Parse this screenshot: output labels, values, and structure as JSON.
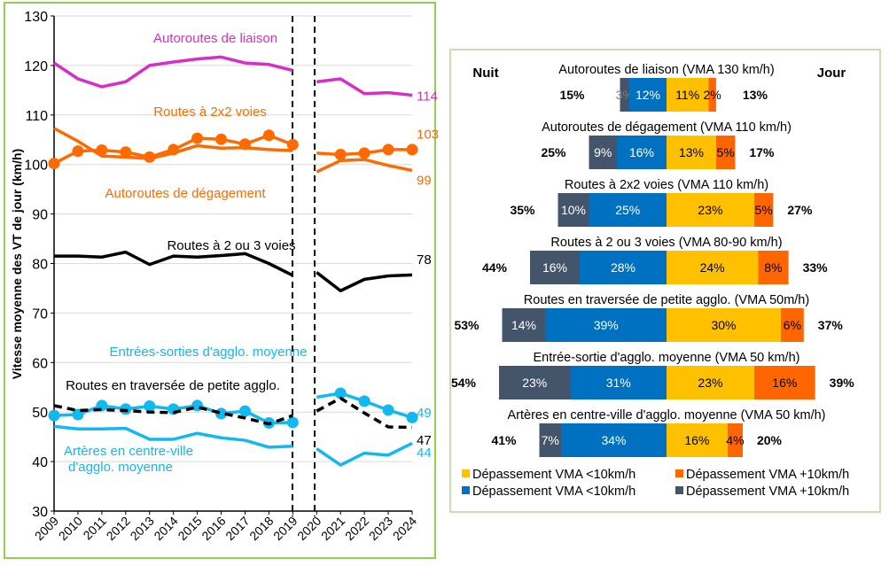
{
  "chart_data": [
    {
      "type": "line",
      "ylabel": "Vitesse moyenne des VT de jour (km/h)",
      "ylim": [
        30,
        130
      ],
      "yticks": [
        30,
        40,
        50,
        60,
        70,
        80,
        90,
        100,
        110,
        120,
        130
      ],
      "x": [
        2009,
        2010,
        2011,
        2012,
        2013,
        2014,
        2015,
        2016,
        2017,
        2018,
        2019,
        2020,
        2021,
        2022,
        2023,
        2024
      ],
      "grid": true,
      "series": [
        {
          "name": "Autoroutes de liaison",
          "color": "#d62fc8",
          "markers": false,
          "dashed": false,
          "end_label": "114",
          "values": [
            120.5,
            117.3,
            115.7,
            116.7,
            120,
            120.7,
            121.3,
            121.7,
            120.5,
            120.2,
            119,
            116.7,
            117.3,
            114.3,
            114.5,
            114
          ]
        },
        {
          "name": "Routes à 2x2 voies",
          "color": "#ff6a00",
          "markers": true,
          "dashed": false,
          "end_label": "103",
          "values": [
            100.2,
            102.7,
            102.9,
            102.5,
            101.5,
            103,
            105.3,
            105.1,
            104.1,
            105.9,
            104,
            102.3,
            102,
            102.3,
            103,
            103
          ]
        },
        {
          "name": "Autoroutes de dégagement",
          "color": "#ff6a00",
          "markers": false,
          "dashed": false,
          "end_label": "99",
          "values": [
            107.3,
            104.7,
            101.7,
            101.5,
            101.2,
            102.3,
            103.8,
            103.3,
            103.4,
            103,
            102.8,
            98.5,
            100.8,
            101,
            99.8,
            98.8
          ]
        },
        {
          "name": "Routes à 2 ou 3 voies",
          "color": "#000000",
          "markers": false,
          "dashed": false,
          "end_label": "78",
          "values": [
            81.5,
            81.5,
            81.3,
            82.3,
            79.8,
            81.5,
            81.3,
            81.6,
            82,
            80,
            77.6,
            78.2,
            74.5,
            76.8,
            77.5,
            77.7
          ]
        },
        {
          "name": "Entrées-sorties d'agglo. moyenne",
          "color": "#12b8f0",
          "markers": true,
          "dashed": false,
          "end_label": "49",
          "values": [
            49.3,
            49.5,
            51.3,
            50.6,
            51.2,
            50.6,
            51.3,
            49.7,
            50.2,
            47.8,
            47.9,
            53,
            53.8,
            52.2,
            50.4,
            48.9
          ]
        },
        {
          "name": "Routes en traversée de petite agglo.",
          "color": "#000000",
          "markers": false,
          "dashed": true,
          "end_label": "47",
          "values": [
            51.3,
            50.3,
            50.5,
            50.3,
            50,
            49.9,
            51,
            49.8,
            48.8,
            47.6,
            49.3,
            50.2,
            52.8,
            49.8,
            47,
            46.9
          ]
        },
        {
          "name": "Artères en centre-ville d'agglo. moyenne",
          "color": "#12b8f0",
          "markers": false,
          "dashed": false,
          "end_label": "44",
          "values": [
            47.1,
            46.6,
            46.6,
            46.7,
            44.5,
            44.5,
            45.7,
            44.8,
            44.3,
            42.9,
            43.1,
            42.6,
            39.3,
            41.7,
            41.3,
            43.7
          ]
        }
      ],
      "series_labels": {
        "liaison": "Autoroutes de liaison",
        "deux_deux": "Routes à 2x2 voies",
        "degagement": "Autoroutes de dégagement",
        "deux_trois": "Routes à 2 ou 3 voies",
        "entrees": "Entrées-sorties d'agglo. moyenne",
        "traversee": "Routes en traversée de petite agglo.",
        "arteres_1": "Artères en centre-ville",
        "arteres_2": "d'agglo. moyenne"
      }
    },
    {
      "type": "bar",
      "orientation": "horizontal-diverging",
      "left_header": "Nuit",
      "right_header": "Jour",
      "categories": [
        "Autoroutes de liaison (VMA 130 km/h)",
        "Autoroutes de dégagement (VMA 110 km/h)",
        "Routes à 2x2 voies (VMA 110 km/h)",
        "Routes à 2 ou 3 voies (VMA 80-90 km/h)",
        "Routes en traversée de petite agglo. (VMA 50m/h)",
        "Entrée-sortie d'agglo. moyenne (VMA 50 km/h)",
        "Artères en centre-ville d'agglo. moyenne (VMA 50 km/h)"
      ],
      "night_plus10": [
        3,
        9,
        10,
        16,
        14,
        23,
        7
      ],
      "night_under10": [
        12,
        16,
        25,
        28,
        39,
        31,
        34
      ],
      "day_under10": [
        11,
        13,
        23,
        24,
        30,
        23,
        16
      ],
      "day_plus10": [
        2,
        5,
        5,
        8,
        6,
        16,
        4
      ],
      "night_total": [
        "15%",
        "25%",
        "35%",
        "44%",
        "53%",
        "54%",
        "41%"
      ],
      "day_total": [
        "13%",
        "17%",
        "27%",
        "33%",
        "37%",
        "39%",
        "20%"
      ],
      "legend": [
        {
          "label": "Dépassement VMA <10km/h",
          "color": "#ffc000"
        },
        {
          "label": "Dépassement VMA +10km/h",
          "color": "#ff6600"
        },
        {
          "label": "Dépassement VMA <10km/h",
          "color": "#0070c0"
        },
        {
          "label": "Dépassement VMA +10km/h",
          "color": "#44546a"
        }
      ]
    }
  ]
}
